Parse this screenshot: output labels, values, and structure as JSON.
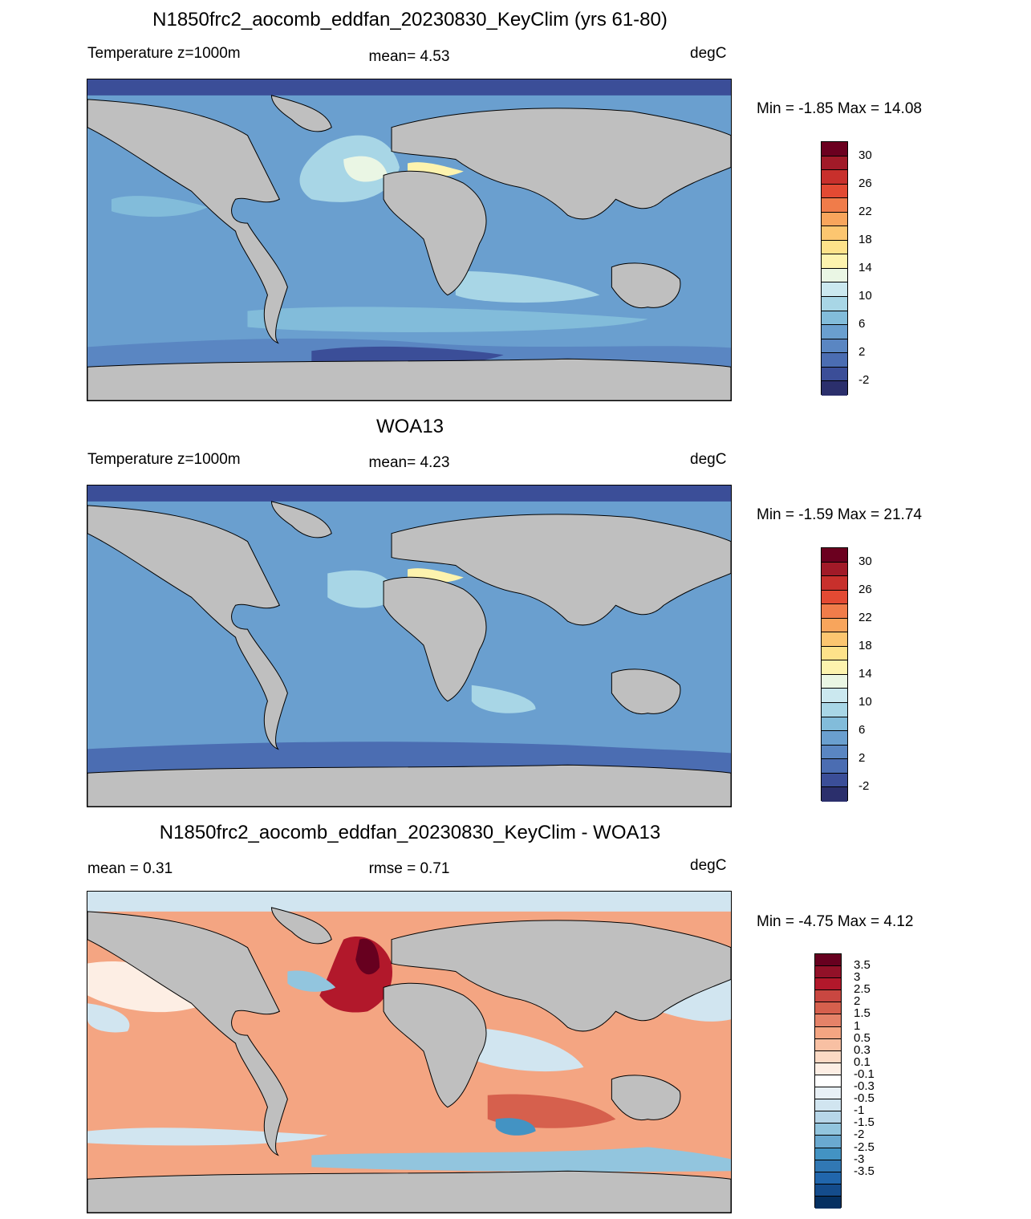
{
  "panels": [
    {
      "title": "N1850frc2_aocomb_eddfan_20230830_KeyClim (yrs 61-80)",
      "left_label": "Temperature z=1000m",
      "center_label": "mean=   4.53",
      "right_label": "degC",
      "minmax": "Min =  -1.85 Max =  14.08"
    },
    {
      "title": "WOA13",
      "left_label": "Temperature z=1000m",
      "center_label": "mean=   4.23",
      "right_label": "degC",
      "minmax": "Min =  -1.59 Max =  21.74"
    },
    {
      "title": "N1850frc2_aocomb_eddfan_20230830_KeyClim - WOA13",
      "left_label": "mean =   0.31",
      "center_label": "rmse =   0.71",
      "right_label": "degC",
      "minmax": "Min =  -4.75 Max =   4.12"
    }
  ],
  "chart_data": [
    {
      "type": "heatmap",
      "title": "N1850frc2_aocomb_eddfan_20230830_KeyClim (yrs 61-80)",
      "variable": "Temperature z=1000m",
      "units": "degC",
      "mean": 4.53,
      "min": -1.85,
      "max": 14.08,
      "colorbar_levels": [
        -4,
        -2,
        0,
        2,
        4,
        6,
        8,
        10,
        12,
        14,
        16,
        18,
        20,
        22,
        24,
        26,
        28,
        30,
        32
      ],
      "colorbar_labels": [
        "30",
        "26",
        "22",
        "18",
        "14",
        "10",
        "6",
        "2",
        "-2"
      ],
      "colors": [
        "#6b001f",
        "#a11a28",
        "#c8302c",
        "#e34a33",
        "#f07c4a",
        "#f8a55c",
        "#fcc670",
        "#fde28a",
        "#fdf3ae",
        "#eaf6e4",
        "#cbe8ef",
        "#a8d6e6",
        "#82bcda",
        "#6a9fcf",
        "#5a86c2",
        "#4b6db2",
        "#3b4e98",
        "#2b2f6c"
      ],
      "land_color": "#bfbfbf"
    },
    {
      "type": "heatmap",
      "title": "WOA13",
      "variable": "Temperature z=1000m",
      "units": "degC",
      "mean": 4.23,
      "min": -1.59,
      "max": 21.74,
      "colorbar_levels": [
        -4,
        -2,
        0,
        2,
        4,
        6,
        8,
        10,
        12,
        14,
        16,
        18,
        20,
        22,
        24,
        26,
        28,
        30,
        32
      ],
      "colorbar_labels": [
        "30",
        "26",
        "22",
        "18",
        "14",
        "10",
        "6",
        "2",
        "-2"
      ],
      "colors": [
        "#6b001f",
        "#a11a28",
        "#c8302c",
        "#e34a33",
        "#f07c4a",
        "#f8a55c",
        "#fcc670",
        "#fde28a",
        "#fdf3ae",
        "#eaf6e4",
        "#cbe8ef",
        "#a8d6e6",
        "#82bcda",
        "#6a9fcf",
        "#5a86c2",
        "#4b6db2",
        "#3b4e98",
        "#2b2f6c"
      ],
      "land_color": "#bfbfbf"
    },
    {
      "type": "heatmap",
      "title": "N1850frc2_aocomb_eddfan_20230830_KeyClim - WOA13",
      "units": "degC",
      "mean": 0.31,
      "rmse": 0.71,
      "min": -4.75,
      "max": 4.12,
      "colorbar_labels": [
        "3.5",
        "3",
        "2.5",
        "2",
        "1.5",
        "1",
        "0.5",
        "0.3",
        "0.1",
        "-0.1",
        "-0.3",
        "-0.5",
        "-1",
        "-1.5",
        "-2",
        "-2.5",
        "-3",
        "-3.5"
      ],
      "colors": [
        "#67001f",
        "#921128",
        "#b2182b",
        "#c94741",
        "#d6604d",
        "#e58268",
        "#f4a582",
        "#f8c0a3",
        "#fbd9c4",
        "#fdeee4",
        "#ffffff",
        "#e8f0f6",
        "#d1e5f0",
        "#b7d6e8",
        "#92c5de",
        "#6aa9d0",
        "#4393c3",
        "#3178b4",
        "#2166ac",
        "#144c8c",
        "#053061"
      ],
      "land_color": "#bfbfbf"
    }
  ]
}
